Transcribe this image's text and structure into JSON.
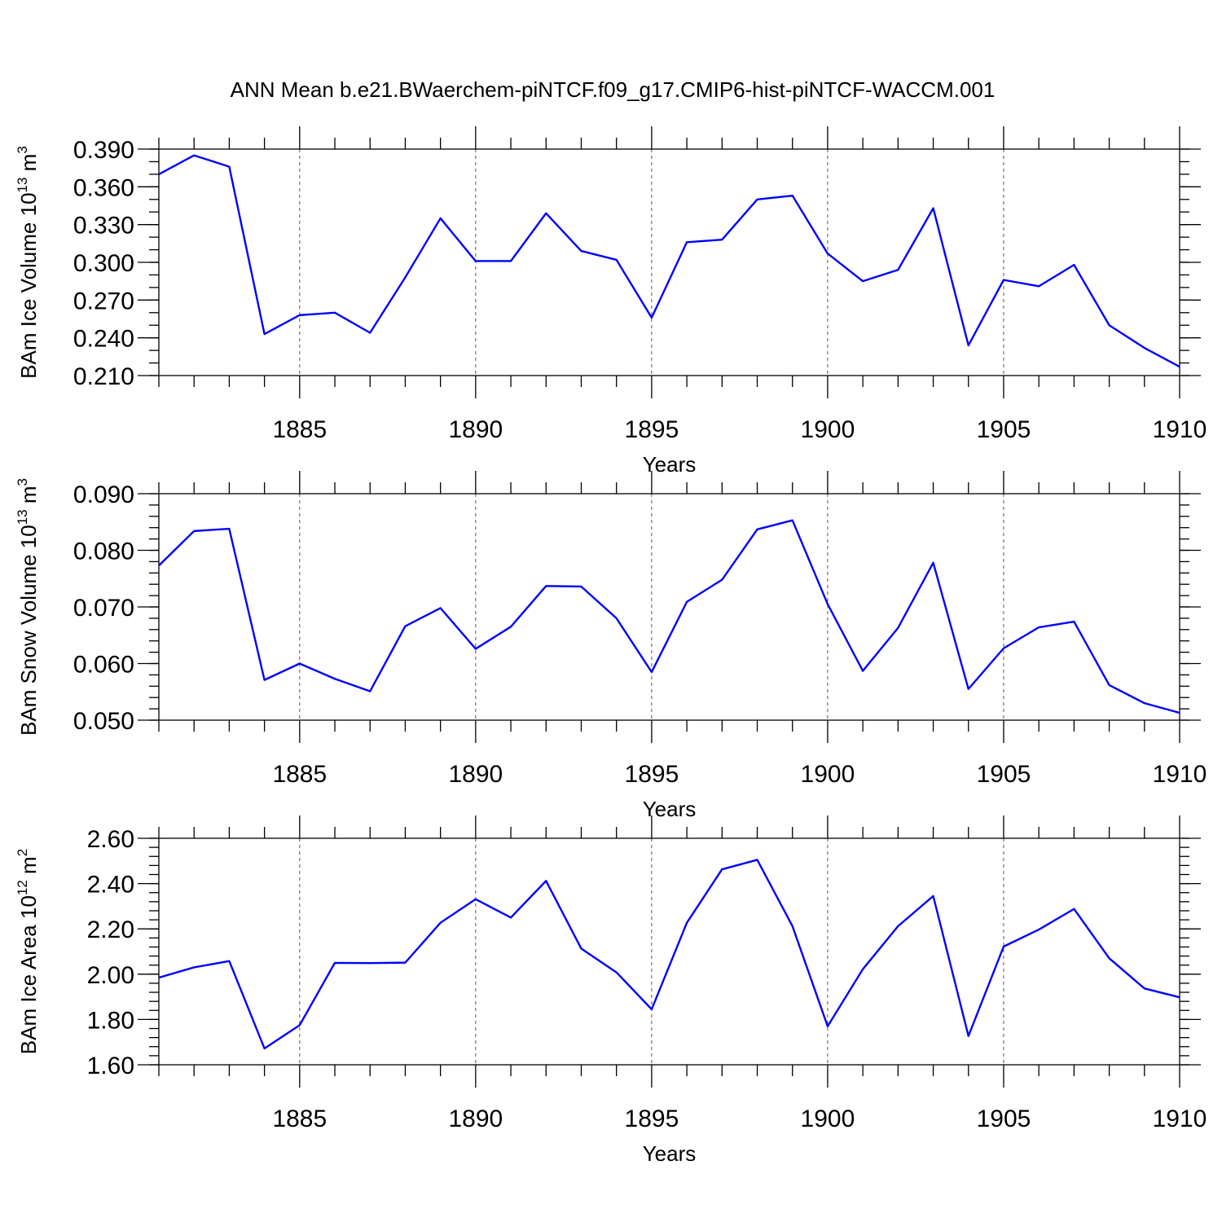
{
  "title": "ANN Mean b.e21.BWaerchem-piNTCF.f09_g17.CMIP6-hist-piNTCF-WACCM.001",
  "colors": {
    "line": "#0000ff",
    "axis": "#000000",
    "grid": "#555555"
  },
  "chart_data": [
    {
      "type": "line",
      "title": "",
      "ylabel_main": "BAm Ice Volume 10",
      "ylabel_exp": "13",
      "ylabel_unit": " m",
      "ylabel_unit_exp": "3",
      "xlabel": "Years",
      "xlim": [
        1881,
        1910
      ],
      "ylim": [
        0.21,
        0.39
      ],
      "y_major_ticks": [
        "0.390",
        "0.360",
        "0.330",
        "0.300",
        "0.270",
        "0.240",
        "0.210"
      ],
      "y_major_values": [
        0.39,
        0.36,
        0.33,
        0.3,
        0.27,
        0.24,
        0.21
      ],
      "y_minor_step": 0.01,
      "x_major_ticks": [
        "1885",
        "1890",
        "1895",
        "1900",
        "1905",
        "1910"
      ],
      "x_major_values": [
        1885,
        1890,
        1895,
        1900,
        1905,
        1910
      ],
      "grid": "vertical dashed at major x ticks",
      "x": [
        1881,
        1882,
        1883,
        1884,
        1885,
        1886,
        1887,
        1888,
        1889,
        1890,
        1891,
        1892,
        1893,
        1894,
        1895,
        1896,
        1897,
        1898,
        1899,
        1900,
        1901,
        1902,
        1903,
        1904,
        1905,
        1906,
        1907,
        1908,
        1909,
        1910
      ],
      "values": [
        0.37,
        0.385,
        0.376,
        0.243,
        0.258,
        0.26,
        0.244,
        0.288,
        0.335,
        0.301,
        0.301,
        0.339,
        0.309,
        0.302,
        0.256,
        0.316,
        0.318,
        0.35,
        0.353,
        0.307,
        0.285,
        0.294,
        0.343,
        0.234,
        0.286,
        0.281,
        0.298,
        0.25,
        0.232,
        0.217
      ]
    },
    {
      "type": "line",
      "title": "",
      "ylabel_main": "BAm Snow Volume 10",
      "ylabel_exp": "13",
      "ylabel_unit": " m",
      "ylabel_unit_exp": "3",
      "xlabel": "Years",
      "xlim": [
        1881,
        1910
      ],
      "ylim": [
        0.05,
        0.09
      ],
      "y_major_ticks": [
        "0.090",
        "0.080",
        "0.070",
        "0.060",
        "0.050"
      ],
      "y_major_values": [
        0.09,
        0.08,
        0.07,
        0.06,
        0.05
      ],
      "y_minor_step": 0.002,
      "x_major_ticks": [
        "1885",
        "1890",
        "1895",
        "1900",
        "1905",
        "1910"
      ],
      "x_major_values": [
        1885,
        1890,
        1895,
        1900,
        1905,
        1910
      ],
      "grid": "vertical dashed at major x ticks",
      "x": [
        1881,
        1882,
        1883,
        1884,
        1885,
        1886,
        1887,
        1888,
        1889,
        1890,
        1891,
        1892,
        1893,
        1894,
        1895,
        1896,
        1897,
        1898,
        1899,
        1900,
        1901,
        1902,
        1903,
        1904,
        1905,
        1906,
        1907,
        1908,
        1909,
        1910
      ],
      "values": [
        0.0773,
        0.0834,
        0.0838,
        0.0571,
        0.06,
        0.0573,
        0.0551,
        0.0666,
        0.0698,
        0.0626,
        0.0665,
        0.0737,
        0.0736,
        0.068,
        0.0585,
        0.0709,
        0.0748,
        0.0837,
        0.0853,
        0.0705,
        0.0587,
        0.0663,
        0.0778,
        0.0555,
        0.0627,
        0.0664,
        0.0674,
        0.0562,
        0.053,
        0.0513
      ]
    },
    {
      "type": "line",
      "title": "",
      "ylabel_main": "BAm Ice Area 10",
      "ylabel_exp": "12",
      "ylabel_unit": " m",
      "ylabel_unit_exp": "2",
      "xlabel": "Years",
      "xlim": [
        1881,
        1910
      ],
      "ylim": [
        1.6,
        2.6
      ],
      "y_major_ticks": [
        "2.60",
        "2.40",
        "2.20",
        "2.00",
        "1.80",
        "1.60"
      ],
      "y_major_values": [
        2.6,
        2.4,
        2.2,
        2.0,
        1.8,
        1.6
      ],
      "y_minor_step": 0.04,
      "x_major_ticks": [
        "1885",
        "1890",
        "1895",
        "1900",
        "1905",
        "1910"
      ],
      "x_major_values": [
        1885,
        1890,
        1895,
        1900,
        1905,
        1910
      ],
      "grid": "vertical dashed at major x ticks",
      "x": [
        1881,
        1882,
        1883,
        1884,
        1885,
        1886,
        1887,
        1888,
        1889,
        1890,
        1891,
        1892,
        1893,
        1894,
        1895,
        1896,
        1897,
        1898,
        1899,
        1900,
        1901,
        1902,
        1903,
        1904,
        1905,
        1906,
        1907,
        1908,
        1909,
        1910
      ],
      "values": [
        1.985,
        2.03,
        2.058,
        1.672,
        1.775,
        2.05,
        2.049,
        2.051,
        2.227,
        2.331,
        2.25,
        2.412,
        2.113,
        2.008,
        1.845,
        2.227,
        2.463,
        2.505,
        2.212,
        1.77,
        2.022,
        2.212,
        2.345,
        1.727,
        2.122,
        2.197,
        2.288,
        2.07,
        1.937,
        1.898
      ]
    }
  ]
}
